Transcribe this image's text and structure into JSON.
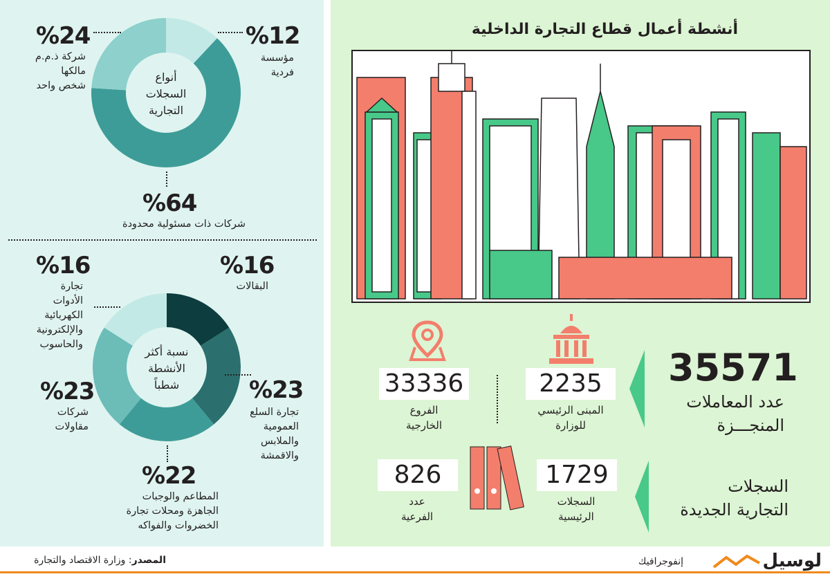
{
  "colors": {
    "left_bg": "#dff4f0",
    "right_bg": "#dcf5d4",
    "teal_dark": "#0d3d3e",
    "teal_mid": "#2b6f6e",
    "teal": "#3e9c98",
    "teal_light": "#8dd0cc",
    "teal_pale": "#c3e9e6",
    "coral": "#f37e6c",
    "green": "#48c989",
    "orange": "#f08a1c"
  },
  "title": "أنشطة أعمال قطاع التجارة الداخلية",
  "icons": [
    "city-skyline-illustration",
    "map-pin-icon",
    "government-building-icon",
    "binders-icon"
  ],
  "donut1": {
    "center_label": "أنواع\nالسجلات\nالتجارية"
  },
  "donut2": {
    "center_label": "نسبة أكثر\nالأنشطة\nشطباً"
  },
  "chart_data": [
    {
      "type": "pie",
      "title": "أنواع السجلات التجارية",
      "slices": [
        {
          "pct_label": "%12",
          "label": "مؤسسة\nفردية",
          "value": 12,
          "color": "#c3e9e6"
        },
        {
          "pct_label": "%64",
          "label": "شركات ذات مسئولية محدودة",
          "value": 64,
          "color": "#3e9c98"
        },
        {
          "pct_label": "%24",
          "label": "شركة ذ.م.م\nمالكها\nشخص واحد",
          "value": 24,
          "color": "#8dd0cc"
        }
      ]
    },
    {
      "type": "pie",
      "title": "نسبة أكثر الأنشطة شطباً",
      "slices": [
        {
          "pct_label": "%16",
          "label": "البقالات",
          "value": 16,
          "color": "#0d3d3e"
        },
        {
          "pct_label": "%23",
          "label": "تجارة السلع\nالعمومية\nوالملابس\nوالاقمشة",
          "value": 23,
          "color": "#2b6f6e"
        },
        {
          "pct_label": "%22",
          "label": "المطاعم والوجبات\nالجاهزة ومحلات تجارة\nالخضروات والفواكه",
          "value": 22,
          "color": "#3e9c98"
        },
        {
          "pct_label": "%23",
          "label": "شركات\nمقاولات",
          "value": 23,
          "color": "#6cbcb8"
        },
        {
          "pct_label": "%16",
          "label": "تجارة\nالأدوات\nالكهربائية\nوالإلكترونية\nوالحاسوب",
          "value": 16,
          "color": "#c3e9e6"
        }
      ]
    }
  ],
  "stats": {
    "transactions": {
      "value": "35571",
      "label": "عدد المعاملات\nالمنجـــزة"
    },
    "main_building": {
      "value": "2235",
      "label": "المبنى الرئيسي\nللوزارة"
    },
    "branches": {
      "value": "33336",
      "label": "الفروع\nالخارجية"
    },
    "new_records": {
      "label": "السجلات\nالتجارية الجديدة"
    },
    "main_records": {
      "value": "1729",
      "label": "السجلات\nالرئيسية"
    },
    "sub_records": {
      "value": "826",
      "label": "عدد\nالفرعية"
    }
  },
  "footer": {
    "source_label": "المصدر",
    "source_text": ": وزارة الاقتصاد والتجارة",
    "brand": "لوسيل",
    "brand_sub": "إنفوجرافيك"
  }
}
